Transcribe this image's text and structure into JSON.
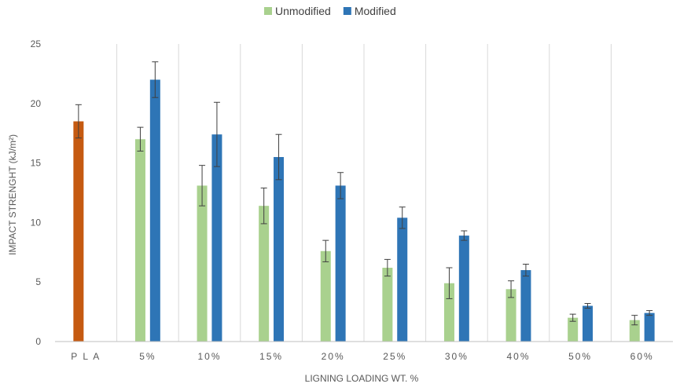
{
  "chart_data": {
    "type": "bar",
    "title": "",
    "xlabel": "LIGNING LOADING WT. %",
    "ylabel": "IMPACT STRENGHT (kJ/m²)",
    "ylim": [
      0,
      25
    ],
    "yticks": [
      0,
      5,
      10,
      15,
      20,
      25
    ],
    "categories": [
      "PLA",
      "5%",
      "10%",
      "15%",
      "20%",
      "25%",
      "30%",
      "40%",
      "50%",
      "60%"
    ],
    "grid": "vertical category separators",
    "legend": "top-center",
    "series": [
      {
        "name": "Unmodified",
        "color": "#a9d18e",
        "values": [
          null,
          17.0,
          13.1,
          11.4,
          7.6,
          6.2,
          4.9,
          4.4,
          2.0,
          1.8
        ],
        "errors": [
          null,
          1.0,
          1.7,
          1.5,
          0.9,
          0.7,
          1.3,
          0.7,
          0.3,
          0.4
        ]
      },
      {
        "name": "Modified",
        "color": "#2e75b6",
        "values": [
          null,
          22.0,
          17.4,
          15.5,
          13.1,
          10.4,
          8.9,
          6.0,
          3.0,
          2.4
        ],
        "errors": [
          null,
          1.5,
          2.7,
          1.9,
          1.1,
          0.9,
          0.4,
          0.5,
          0.2,
          0.2
        ]
      }
    ],
    "reference": {
      "category": "PLA",
      "color": "#c55a11",
      "value": 18.5,
      "error": 1.4
    }
  }
}
